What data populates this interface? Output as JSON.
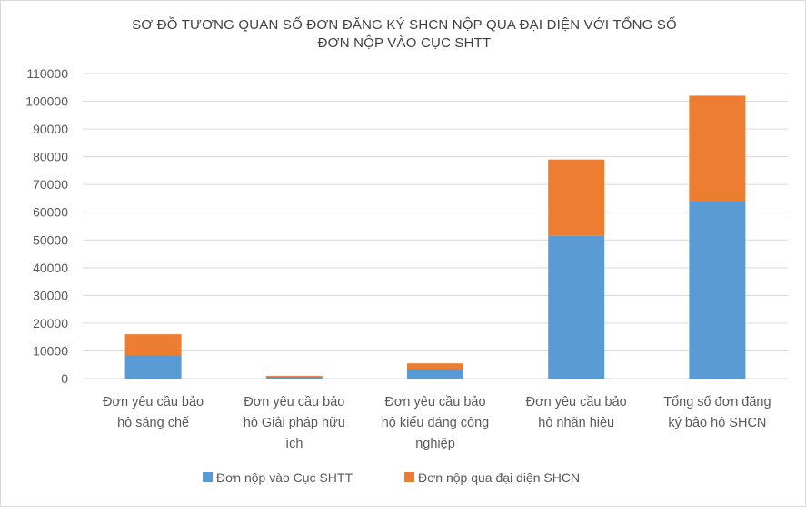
{
  "chart_data": {
    "type": "bar",
    "stacked": true,
    "title_lines": [
      "SƠ ĐỒ TƯƠNG QUAN SỐ ĐƠN ĐĂNG KÝ SHCN NỘP QUA ĐẠI DIỆN VỚI TỔNG SỐ",
      "ĐƠN NỘP VÀO CỤC SHTT"
    ],
    "categories": [
      [
        "Đơn yêu cầu bảo",
        "hộ sáng chế"
      ],
      [
        "Đơn yêu cầu bảo",
        "hộ Giải pháp hữu",
        "ích"
      ],
      [
        "Đơn yêu cầu bảo",
        "hộ kiểu dáng công",
        "nghiệp"
      ],
      [
        "Đơn yêu cầu bảo",
        "hộ nhãn hiệu"
      ],
      [
        "Tổng số đơn đăng",
        "ký bảo hộ SHCN"
      ]
    ],
    "series": [
      {
        "name": "Đơn nộp vào Cục SHTT",
        "color": "#5B9BD5",
        "values": [
          8500,
          700,
          3300,
          51500,
          64000
        ]
      },
      {
        "name": "Đơn nộp qua đại diện SHCN",
        "color": "#ED7D31",
        "values": [
          7500,
          300,
          2200,
          27500,
          38000
        ]
      }
    ],
    "ylim": [
      0,
      110000
    ],
    "yticks": [
      "0",
      "10000",
      "20000",
      "30000",
      "40000",
      "50000",
      "60000",
      "70000",
      "80000",
      "90000",
      "100000",
      "110000"
    ],
    "grid": true,
    "legend_position": "bottom"
  }
}
